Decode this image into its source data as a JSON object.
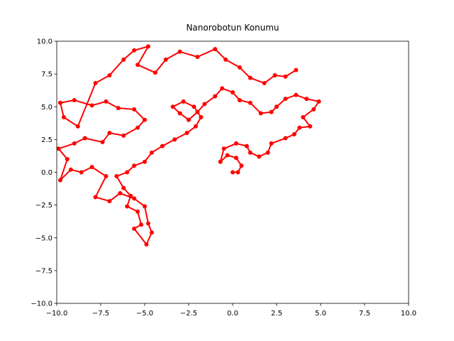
{
  "chart_data": {
    "type": "line",
    "title": "Nanorobotun Konumu",
    "x": [
      0,
      0.3,
      0.5,
      0.2,
      -0.3,
      -0.7,
      -0.5,
      0.2,
      0.8,
      1.0,
      1.5,
      2.0,
      2.2,
      3.0,
      3.5,
      3.8,
      4.4,
      4.0,
      4.6,
      4.9,
      4.2,
      3.6,
      3.0,
      2.5,
      2.2,
      1.6,
      1.0,
      0.4,
      0.0,
      -0.6,
      -1.0,
      -1.6,
      -2.0,
      -2.5,
      -3.0,
      -3.4,
      -2.8,
      -2.2,
      -1.8,
      -2.1,
      -2.6,
      -3.3,
      -4.0,
      -4.6,
      -5.0,
      -5.6,
      -6.0,
      -6.6,
      -6.2,
      -5.8,
      -6.0,
      -5.4,
      -5.2,
      -5.6,
      -4.9,
      -4.6,
      -4.8,
      -5.0,
      -5.6,
      -6.4,
      -7.0,
      -7.8,
      -7.2,
      -8.0,
      -8.6,
      -9.2,
      -9.8,
      -9.4,
      -9.9,
      -9.0,
      -8.4,
      -7.4,
      -7.0,
      -6.2,
      -5.4,
      -5.0,
      -5.6,
      -6.5,
      -7.2,
      -8.0,
      -9.0,
      -9.8,
      -9.6,
      -8.8,
      -7.8,
      -7.0,
      -6.2,
      -5.6,
      -4.8,
      -5.4,
      -4.4,
      -3.8,
      -3.0,
      -2.0,
      -1.0,
      -0.4,
      0.4,
      1.0,
      1.8,
      2.4,
      3.0,
      3.6
    ],
    "series": [
      {
        "color": "#ff0000",
        "values": [
          0,
          0,
          0.5,
          1.1,
          1.3,
          0.8,
          1.8,
          2.2,
          2.0,
          1.5,
          1.2,
          1.5,
          2.2,
          2.6,
          2.9,
          3.4,
          3.5,
          4.2,
          4.8,
          5.4,
          5.6,
          5.9,
          5.6,
          5.0,
          4.6,
          4.5,
          5.3,
          5.5,
          6.1,
          6.4,
          5.8,
          5.2,
          4.6,
          4.0,
          4.5,
          5.0,
          5.4,
          5.0,
          4.2,
          3.5,
          3.0,
          2.5,
          2.0,
          1.5,
          0.8,
          0.5,
          0.0,
          -0.3,
          -1.2,
          -1.8,
          -2.6,
          -3.0,
          -4.0,
          -4.3,
          -5.5,
          -4.6,
          -3.9,
          -2.6,
          -2.0,
          -1.6,
          -2.2,
          -1.9,
          -0.3,
          0.4,
          0.0,
          0.2,
          -0.6,
          1.0,
          1.8,
          2.2,
          2.6,
          2.3,
          3.0,
          2.8,
          3.4,
          4.0,
          4.8,
          4.9,
          5.4,
          5.1,
          5.5,
          5.3,
          4.2,
          3.5,
          6.8,
          7.4,
          8.6,
          9.3,
          9.6,
          8.2,
          7.6,
          8.6,
          9.2,
          8.8,
          9.4,
          8.6,
          8.0,
          7.2,
          6.8,
          7.4,
          7.3,
          7.8
        ]
      }
    ],
    "xlim": [
      -10,
      10
    ],
    "ylim": [
      -10,
      10
    ],
    "xticks": [
      {
        "value": -10,
        "label": "−10.0"
      },
      {
        "value": -7.5,
        "label": "−7.5"
      },
      {
        "value": -5,
        "label": "−5.0"
      },
      {
        "value": -2.5,
        "label": "−2.5"
      },
      {
        "value": 0,
        "label": "0.0"
      },
      2.5,
      {
        "value": 5,
        "label": "5.0"
      },
      7.5,
      {
        "value": 10,
        "label": "10.0"
      }
    ],
    "yticks": [
      {
        "value": -10,
        "label": "−10.0"
      },
      {
        "value": -7.5,
        "label": "−7.5"
      },
      {
        "value": -5,
        "label": "−5.0"
      },
      {
        "value": -2.5,
        "label": "−2.5"
      },
      {
        "value": 0,
        "label": "0.0"
      },
      2.5,
      {
        "value": 5,
        "label": "5.0"
      },
      7.5,
      {
        "value": 10,
        "label": "10.0"
      }
    ]
  }
}
